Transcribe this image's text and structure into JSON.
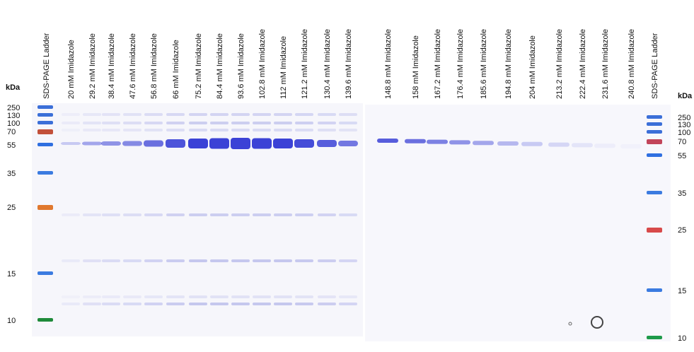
{
  "lanes_left": [
    "SDS-PAGE Ladder",
    "20 mM Imidazole",
    "29.2 mM Imidazole",
    "38.4 mM Imidazole",
    "47.6 mM Imidazole",
    "56.8 mM Imidazole",
    "66 mM Imidazole",
    "75.2 mM Imidazole",
    "84.4 mM Imidazole",
    "93.6 mM Imidazole",
    "102.8 mM Imidazole",
    "112 mM Imidazole",
    "121.2 mM Imidazole",
    "130.4 mM Imidazole",
    "139.6 mM Imidazole"
  ],
  "lanes_right": [
    "148.8 mM Imidazole",
    "158 mM Imidazole",
    "167.2 mM Imidazole",
    "176.4 mM Imidazole",
    "185.6 mM Imidazole",
    "194.8 mM Imidazole",
    "204 mM Imidazole",
    "213.2 mM Imidazole",
    "222.4 mM Imidazole",
    "231.6 mM Imidazole",
    "240.8 mM Imidazole",
    "SDS-PAGE Ladder"
  ],
  "left_markers": {
    "unit": "kDa",
    "labels": [
      "250",
      "130",
      "100",
      "70",
      "55",
      "35",
      "25",
      "15",
      "10"
    ]
  },
  "right_markers": {
    "unit": "kDa",
    "labels": [
      "250",
      "130",
      "100",
      "70",
      "55",
      "35",
      "25",
      "15",
      "10"
    ]
  }
}
